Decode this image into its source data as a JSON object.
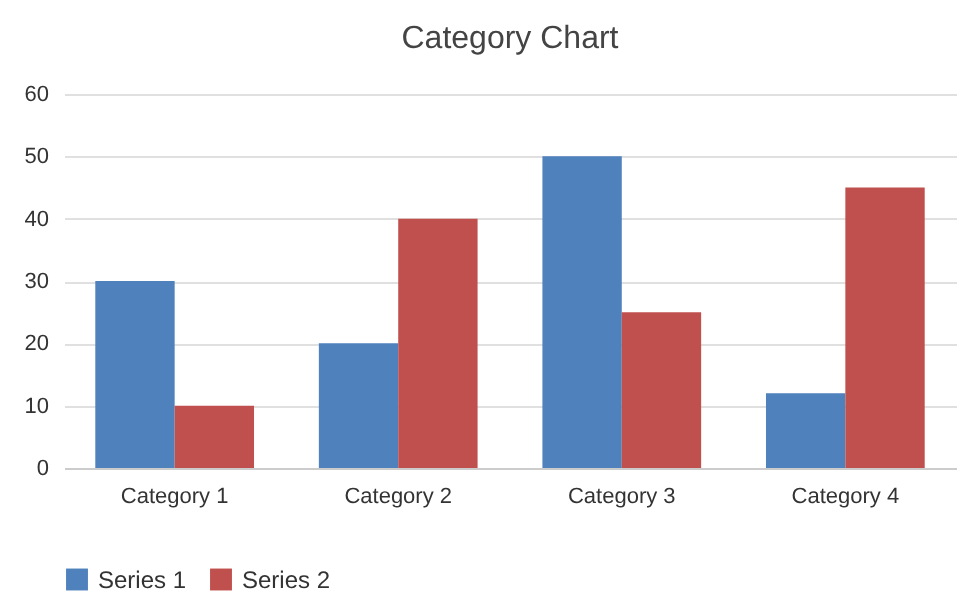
{
  "chart_data": {
    "type": "bar",
    "title": "Category Chart",
    "categories": [
      "Category 1",
      "Category 2",
      "Category 3",
      "Category 4"
    ],
    "series": [
      {
        "name": "Series 1",
        "color": "#4f81bd",
        "values": [
          30,
          20,
          50,
          12
        ]
      },
      {
        "name": "Series 2",
        "color": "#c0504d",
        "values": [
          10,
          40,
          25,
          45
        ]
      }
    ],
    "ylim": [
      0,
      60
    ],
    "yticks": [
      0,
      10,
      20,
      30,
      40,
      50,
      60
    ],
    "grid": "y",
    "legend": "bottom"
  }
}
